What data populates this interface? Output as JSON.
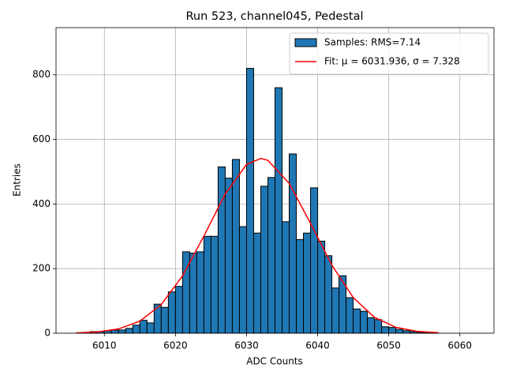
{
  "chart_data": {
    "type": "histogram",
    "title": "Run 523, channel045, Pedestal",
    "xlabel": "ADC Counts",
    "ylabel": "Entries",
    "bins": [
      6006,
      6007,
      6008,
      6009,
      6010,
      6011,
      6012,
      6013,
      6014,
      6015,
      6016,
      6017,
      6018,
      6019,
      6020,
      6021,
      6022,
      6023,
      6024,
      6025,
      6026,
      6027,
      6028,
      6029,
      6030,
      6031,
      6032,
      6033,
      6034,
      6035,
      6036,
      6037,
      6038,
      6039,
      6040,
      6041,
      6042,
      6043,
      6044,
      6045,
      6046,
      6047,
      6048,
      6049,
      6050,
      6051,
      6052,
      6053,
      6054,
      6055,
      6056,
      6057,
      6058,
      6059,
      6060,
      6061,
      6062
    ],
    "counts": [
      0,
      2,
      5,
      5,
      8,
      10,
      10,
      15,
      25,
      40,
      32,
      90,
      80,
      128,
      145,
      252,
      248,
      252,
      300,
      300,
      515,
      480,
      538,
      330,
      820,
      310,
      455,
      482,
      760,
      345,
      555,
      290,
      310,
      450,
      285,
      240,
      140,
      178,
      110,
      75,
      68,
      48,
      42,
      20,
      18,
      12,
      8,
      5,
      3,
      2,
      1,
      0,
      0,
      0,
      0,
      0
    ],
    "name": "Samples: RMS=7.14",
    "color": "#1f77b4",
    "fit": {
      "name": "Fit: μ = 6031.936, σ = 7.328",
      "color": "#ff0000",
      "x": [
        6006,
        6009,
        6012,
        6015,
        6018,
        6021,
        6024,
        6027,
        6030,
        6032,
        6033,
        6036,
        6039,
        6042,
        6045,
        6048,
        6051,
        6054,
        6057
      ],
      "values": [
        1.0,
        4.0,
        13.4,
        37.4,
        88.7,
        177.7,
        301,
        431,
        522.5,
        541,
        535.3,
        463.8,
        340,
        210.7,
        110.4,
        49,
        18.3,
        5.8,
        1.6
      ]
    },
    "xlim": [
      6003.2,
      6064.8
    ],
    "ylim": [
      0,
      946
    ],
    "xticks": [
      6010,
      6020,
      6030,
      6040,
      6050,
      6060
    ],
    "yticks": [
      0,
      200,
      400,
      600,
      800
    ],
    "grid": true,
    "legend": "upper right"
  }
}
